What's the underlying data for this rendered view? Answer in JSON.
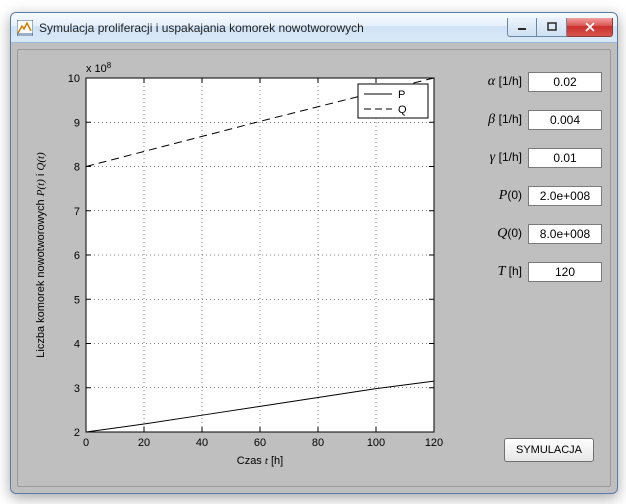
{
  "window": {
    "title": "Symulacja proliferacji i uspakajania komorek nowotworowych"
  },
  "simulate_label": "SYMULACJA",
  "params": {
    "alpha": {
      "label": "α",
      "unit": "[1/h]",
      "value": "0.02"
    },
    "beta": {
      "label": "β",
      "unit": "[1/h]",
      "value": "0.004"
    },
    "gamma": {
      "label": "γ",
      "unit": "[1/h]",
      "value": "0.01"
    },
    "P0": {
      "label_html": "P(0)",
      "value": "2.0e+008"
    },
    "Q0": {
      "label_html": "Q(0)",
      "value": "8.0e+008"
    },
    "T": {
      "label": "T",
      "unit": "[h]",
      "value": "120"
    }
  },
  "chart": {
    "type": "line",
    "exponent_label": "x 10",
    "exponent": "8",
    "xlabel_prefix": "Czas ",
    "xlabel_var": "t",
    "xlabel_unit": " [h]",
    "ylabel_prefix": "Liczba komorek nowotworowych ",
    "ylabel_var1": "P(t)",
    "ylabel_mid": " i ",
    "ylabel_var2": "Q(t)",
    "xlim": [
      0,
      120
    ],
    "ylim": [
      2,
      10
    ],
    "xticks": [
      0,
      20,
      40,
      60,
      80,
      100,
      120
    ],
    "yticks": [
      2,
      3,
      4,
      5,
      6,
      7,
      8,
      9,
      10
    ],
    "grid_color": "#000000",
    "grid_dash": "1,3",
    "background": "#ffffff",
    "axes_color": "#000000",
    "line_width": 1.0,
    "legend": {
      "position": "northeast",
      "bg": "#ffffff",
      "border": "#000000",
      "items": [
        {
          "label": "P",
          "dash": "solid"
        },
        {
          "label": "Q",
          "dash": "dashed"
        }
      ]
    },
    "series": [
      {
        "name": "P",
        "color": "#000000",
        "dash": "solid",
        "points": [
          {
            "x": 0,
            "y": 2.0
          },
          {
            "x": 20,
            "y": 2.18
          },
          {
            "x": 40,
            "y": 2.38
          },
          {
            "x": 60,
            "y": 2.58
          },
          {
            "x": 80,
            "y": 2.78
          },
          {
            "x": 100,
            "y": 2.98
          },
          {
            "x": 120,
            "y": 3.15
          }
        ]
      },
      {
        "name": "Q",
        "color": "#000000",
        "dash": "dashed",
        "points": [
          {
            "x": 0,
            "y": 8.0
          },
          {
            "x": 20,
            "y": 8.34
          },
          {
            "x": 40,
            "y": 8.68
          },
          {
            "x": 60,
            "y": 9.02
          },
          {
            "x": 80,
            "y": 9.35
          },
          {
            "x": 100,
            "y": 9.68
          },
          {
            "x": 120,
            "y": 10.0
          }
        ]
      }
    ]
  },
  "colors": {
    "panel_bg": "#bfbfbf"
  }
}
